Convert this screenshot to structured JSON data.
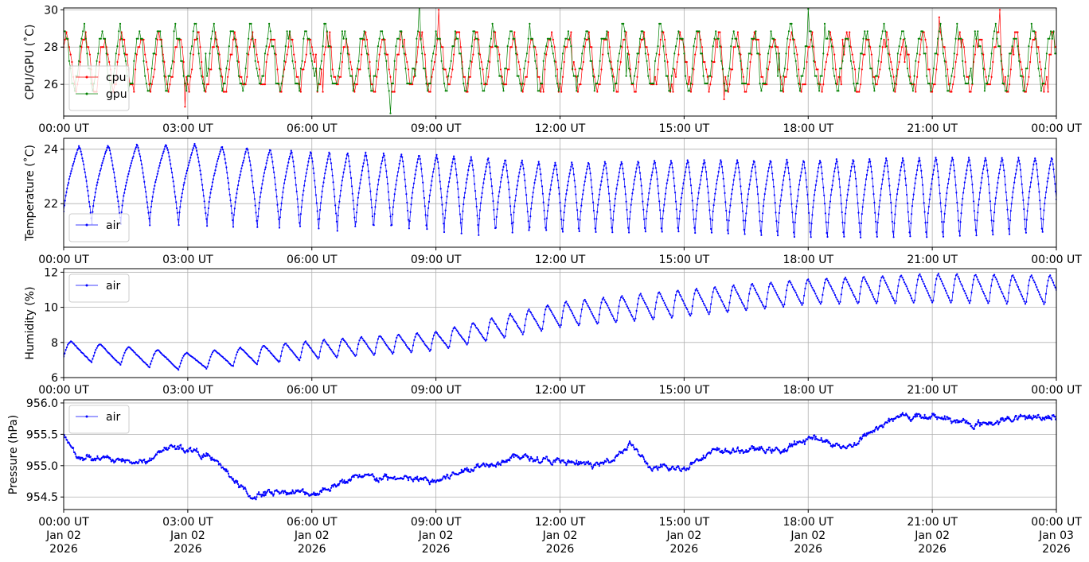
{
  "chart_data": [
    {
      "type": "line",
      "ylabel": "CPU/GPU (˚C)",
      "ylim": [
        24.3,
        30.1
      ],
      "yticks": [
        26,
        28,
        30
      ],
      "ytick_labels": [
        "26",
        "28",
        "30"
      ],
      "x_tick_labels": [
        "00:00 UT",
        "03:00 UT",
        "06:00 UT",
        "09:00 UT",
        "12:00 UT",
        "15:00 UT",
        "18:00 UT",
        "21:00 UT",
        "00:00 UT"
      ],
      "grid": true,
      "legend_position": "lower-left",
      "series": [
        {
          "name": "cpu",
          "color": "#ff0000",
          "baseline": 27.2,
          "amplitude": 1.4,
          "period_hours": 0.45,
          "noise": 0.8,
          "quantum": 0.4
        },
        {
          "name": "gpu",
          "color": "#008000",
          "baseline": 27.3,
          "amplitude": 1.5,
          "period_hours": 0.45,
          "noise": 0.8,
          "quantum": 0.4
        }
      ]
    },
    {
      "type": "line",
      "ylabel": "Temperature (˚C)",
      "ylim": [
        20.4,
        24.4
      ],
      "yticks": [
        22,
        24
      ],
      "ytick_labels": [
        "22",
        "24"
      ],
      "x_tick_labels": [
        "00:00 UT",
        "03:00 UT",
        "06:00 UT",
        "09:00 UT",
        "12:00 UT",
        "15:00 UT",
        "18:00 UT",
        "21:00 UT",
        "00:00 UT"
      ],
      "grid": true,
      "legend_position": "lower-left",
      "series": [
        {
          "name": "air",
          "color": "#0000ff",
          "x_hours": [
            0,
            3,
            6,
            9,
            12,
            15,
            18,
            21,
            24
          ],
          "peak": [
            24.1,
            24.2,
            23.9,
            23.8,
            23.5,
            23.6,
            23.6,
            23.7,
            23.7
          ],
          "trough": [
            21.3,
            21.2,
            21.0,
            20.9,
            20.8,
            20.8,
            20.6,
            20.6,
            20.8
          ],
          "period_hours": [
            0.7,
            0.7,
            0.45,
            0.42,
            0.4,
            0.4,
            0.4,
            0.4,
            0.4
          ]
        }
      ]
    },
    {
      "type": "line",
      "ylabel": "Humidity (%)",
      "ylim": [
        6,
        12.2
      ],
      "yticks": [
        6,
        8,
        10,
        12
      ],
      "ytick_labels": [
        "6",
        "8",
        "10",
        "12"
      ],
      "x_tick_labels": [
        "00:00 UT",
        "03:00 UT",
        "06:00 UT",
        "09:00 UT",
        "12:00 UT",
        "15:00 UT",
        "18:00 UT",
        "21:00 UT",
        "00:00 UT"
      ],
      "grid": true,
      "legend_position": "upper-left",
      "series": [
        {
          "name": "air",
          "color": "#0000ff",
          "x_hours": [
            0,
            3,
            6,
            9,
            12,
            15,
            18,
            21,
            24
          ],
          "trough": [
            7.0,
            6.4,
            7.0,
            7.5,
            8.8,
            9.4,
            10.1,
            10.2,
            10.1
          ],
          "peak": [
            8.1,
            7.4,
            8.1,
            8.6,
            10.3,
            11.0,
            11.6,
            11.9,
            11.8
          ],
          "period_hours": [
            0.7,
            0.7,
            0.45,
            0.45,
            0.45,
            0.45,
            0.45,
            0.45,
            0.45
          ]
        }
      ]
    },
    {
      "type": "line",
      "ylabel": "Pressure (hPa)",
      "ylim": [
        954.3,
        956.05
      ],
      "yticks": [
        954.5,
        955.0,
        955.5,
        956.0
      ],
      "ytick_labels": [
        "954.5",
        "955.0",
        "955.5",
        "956.0"
      ],
      "x_tick_labels": [
        "00:00 UT\nJan 02\n2026",
        "03:00 UT\nJan 02\n2026",
        "06:00 UT\nJan 02\n2026",
        "09:00 UT\nJan 02\n2026",
        "12:00 UT\nJan 02\n2026",
        "15:00 UT\nJan 02\n2026",
        "18:00 UT\nJan 02\n2026",
        "21:00 UT\nJan 02\n2026",
        "00:00 UT\nJan 03\n2026"
      ],
      "grid": true,
      "legend_position": "upper-left",
      "series": [
        {
          "name": "air",
          "color": "#0000ff",
          "x_hours": [
            0,
            0.3,
            1.0,
            2.0,
            2.5,
            3.2,
            3.8,
            4.5,
            5.2,
            6.0,
            7.0,
            8.0,
            9.0,
            10.0,
            11.0,
            12.0,
            13.0,
            13.7,
            14.2,
            15.0,
            15.5,
            16.5,
            17.5,
            18.0,
            19.0,
            20.0,
            21.0,
            22.0,
            23.0,
            24.0
          ],
          "y": [
            955.5,
            955.15,
            955.1,
            955.05,
            955.3,
            955.25,
            955.0,
            954.5,
            954.6,
            954.55,
            954.8,
            954.8,
            954.75,
            955.0,
            955.15,
            955.05,
            955.0,
            955.35,
            954.95,
            954.95,
            955.2,
            955.25,
            955.25,
            955.45,
            955.3,
            955.75,
            955.8,
            955.65,
            955.75,
            955.8
          ],
          "noise": 0.06
        }
      ]
    }
  ]
}
